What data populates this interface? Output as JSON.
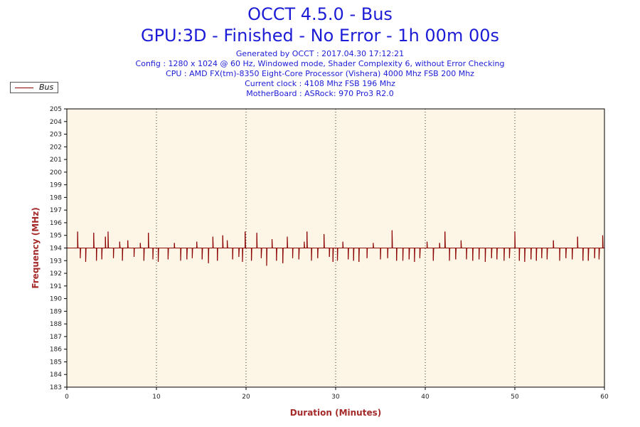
{
  "header": {
    "title": "OCCT 4.5.0 - Bus",
    "subtitle": "GPU:3D - Finished - No Error - 1h 00m 00s",
    "info_lines": [
      "Generated by OCCT : 2017.04.30 17:12:21",
      "Config : 1280 x 1024 @ 60 Hz, Windowed mode, Shader Complexity 6, without Error Checking",
      "CPU : AMD FX(tm)-8350 Eight-Core Processor (Vishera) 4000 Mhz FSB 200 Mhz",
      "Current clock : 4108 Mhz FSB 196 Mhz",
      "MotherBoard : ASRock: 970 Pro3 R2.0"
    ]
  },
  "legend": {
    "label": "Bus",
    "color": "#8b0000",
    "placement": "top-left"
  },
  "chart_data": {
    "type": "line",
    "xlabel": "Duration (Minutes)",
    "ylabel": "Frequency (MHz)",
    "xlim": [
      0,
      60
    ],
    "ylim": [
      183,
      205
    ],
    "x_ticks": [
      0,
      10,
      20,
      30,
      40,
      50,
      60
    ],
    "y_ticks": [
      183,
      184,
      185,
      186,
      187,
      188,
      189,
      190,
      191,
      192,
      193,
      194,
      195,
      196,
      197,
      198,
      199,
      200,
      201,
      202,
      203,
      204,
      205
    ],
    "grid": "vertical dotted",
    "plot_background": "#fdf5e6",
    "series": [
      {
        "name": "Bus",
        "color": "#8b0000",
        "baseline": 194,
        "spikes": [
          [
            1.2,
            195.3
          ],
          [
            1.5,
            193.2
          ],
          [
            2.1,
            192.9
          ],
          [
            3.0,
            195.2
          ],
          [
            3.3,
            193.0
          ],
          [
            3.9,
            193.1
          ],
          [
            4.3,
            194.9
          ],
          [
            4.6,
            195.3
          ],
          [
            5.2,
            193.2
          ],
          [
            5.9,
            194.5
          ],
          [
            6.2,
            193.0
          ],
          [
            6.8,
            194.6
          ],
          [
            7.5,
            193.3
          ],
          [
            8.2,
            194.4
          ],
          [
            8.6,
            193.0
          ],
          [
            9.1,
            195.2
          ],
          [
            9.6,
            193.1
          ],
          [
            10.2,
            192.9
          ],
          [
            11.3,
            193.1
          ],
          [
            12.0,
            194.4
          ],
          [
            12.7,
            193.0
          ],
          [
            13.4,
            193.1
          ],
          [
            14.0,
            193.2
          ],
          [
            14.5,
            194.5
          ],
          [
            15.1,
            193.1
          ],
          [
            15.8,
            192.8
          ],
          [
            16.3,
            194.9
          ],
          [
            16.8,
            193.0
          ],
          [
            17.4,
            195.0
          ],
          [
            17.9,
            194.6
          ],
          [
            18.5,
            193.1
          ],
          [
            19.2,
            193.3
          ],
          [
            19.6,
            192.9
          ],
          [
            19.9,
            195.3
          ],
          [
            20.6,
            193.0
          ],
          [
            21.2,
            195.2
          ],
          [
            21.7,
            193.2
          ],
          [
            22.3,
            192.6
          ],
          [
            22.9,
            194.7
          ],
          [
            23.4,
            193.0
          ],
          [
            24.1,
            192.8
          ],
          [
            24.6,
            194.9
          ],
          [
            25.2,
            193.2
          ],
          [
            25.9,
            193.1
          ],
          [
            26.5,
            194.5
          ],
          [
            26.8,
            195.3
          ],
          [
            27.3,
            193.0
          ],
          [
            28.0,
            193.2
          ],
          [
            28.7,
            195.1
          ],
          [
            29.3,
            193.3
          ],
          [
            29.7,
            192.9
          ],
          [
            30.2,
            193.0
          ],
          [
            30.8,
            194.5
          ],
          [
            31.4,
            193.1
          ],
          [
            32.0,
            193.0
          ],
          [
            32.6,
            192.9
          ],
          [
            33.5,
            193.2
          ],
          [
            34.2,
            194.4
          ],
          [
            35.0,
            193.1
          ],
          [
            35.8,
            193.2
          ],
          [
            36.3,
            195.4
          ],
          [
            36.8,
            193.0
          ],
          [
            37.5,
            193.0
          ],
          [
            38.2,
            193.1
          ],
          [
            38.8,
            192.9
          ],
          [
            39.4,
            193.2
          ],
          [
            40.2,
            194.5
          ],
          [
            40.9,
            193.0
          ],
          [
            41.6,
            194.4
          ],
          [
            42.2,
            195.3
          ],
          [
            42.7,
            193.0
          ],
          [
            43.4,
            193.1
          ],
          [
            44.0,
            194.6
          ],
          [
            44.6,
            193.1
          ],
          [
            45.3,
            193.0
          ],
          [
            46.0,
            193.1
          ],
          [
            46.7,
            192.9
          ],
          [
            47.4,
            193.2
          ],
          [
            48.0,
            193.1
          ],
          [
            48.8,
            193.0
          ],
          [
            49.4,
            193.2
          ],
          [
            50.0,
            195.3
          ],
          [
            50.5,
            193.0
          ],
          [
            51.1,
            192.9
          ],
          [
            51.8,
            193.1
          ],
          [
            52.4,
            193.0
          ],
          [
            53.0,
            193.2
          ],
          [
            53.6,
            193.1
          ],
          [
            54.3,
            194.6
          ],
          [
            55.0,
            193.0
          ],
          [
            55.7,
            193.2
          ],
          [
            56.4,
            193.1
          ],
          [
            57.0,
            194.9
          ],
          [
            57.6,
            193.0
          ],
          [
            58.2,
            193.0
          ],
          [
            58.9,
            193.2
          ],
          [
            59.4,
            193.1
          ],
          [
            59.8,
            195.0
          ]
        ]
      }
    ]
  }
}
